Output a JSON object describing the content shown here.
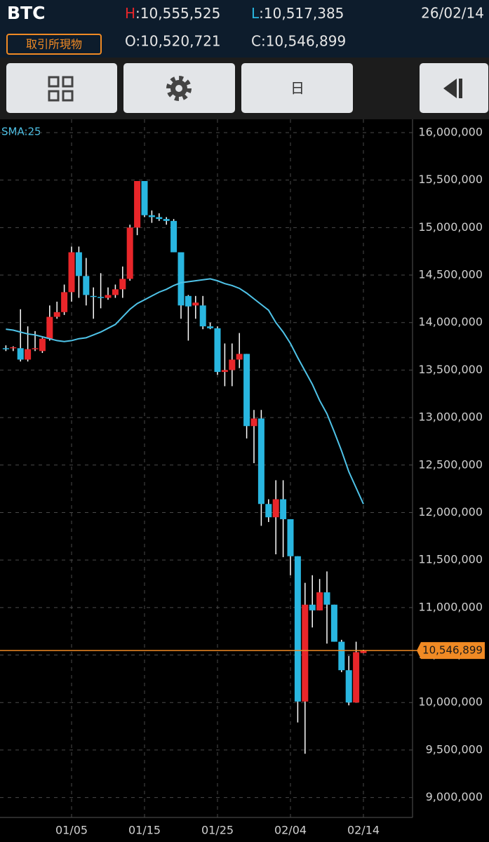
{
  "header": {
    "symbol": "BTC",
    "market": "取引所現物",
    "date": "26/02/14",
    "high": {
      "key": "H",
      "text": ":10,555,525"
    },
    "low": {
      "key": "L",
      "text": ":10,517,385"
    },
    "open": "O:10,520,721",
    "close": "C:10,546,899"
  },
  "toolbar": {
    "period": "日"
  },
  "chart_data": {
    "type": "candlestick",
    "categories": [
      null,
      null,
      null,
      null,
      null,
      null,
      null,
      null,
      null,
      "01/05",
      null,
      null,
      null,
      null,
      null,
      null,
      null,
      null,
      null,
      "01/15",
      null,
      null,
      null,
      null,
      null,
      null,
      null,
      null,
      null,
      "01/25",
      null,
      null,
      null,
      null,
      null,
      null,
      null,
      null,
      null,
      "02/04",
      null,
      null,
      null,
      null,
      null,
      null,
      null,
      null,
      null,
      "02/14"
    ],
    "open": [
      13730000,
      13730000,
      13730000,
      13610000,
      13720000,
      13700000,
      13830000,
      14060000,
      14110000,
      14320000,
      14740000,
      14490000,
      14280000,
      14270000,
      14260000,
      14290000,
      14350000,
      14460000,
      15000000,
      15490000,
      15130000,
      15110000,
      15090000,
      15070000,
      14740000,
      14280000,
      14180000,
      14180000,
      13960000,
      13940000,
      13480000,
      13500000,
      13610000,
      13670000,
      12910000,
      12990000,
      12090000,
      11950000,
      12140000,
      11930000,
      11540000,
      10010000,
      11030000,
      10970000,
      11160000,
      11030000,
      10640000,
      10340000,
      10000000,
      10520721
    ],
    "high": [
      13760000,
      13750000,
      14140000,
      13960000,
      13910000,
      13840000,
      14180000,
      14220000,
      14400000,
      14800000,
      14800000,
      14680000,
      14370000,
      14520000,
      14370000,
      14400000,
      14590000,
      15030000,
      15490000,
      15490000,
      15180000,
      15150000,
      15110000,
      15090000,
      14740000,
      14290000,
      14280000,
      14280000,
      14000000,
      13960000,
      13780000,
      13780000,
      13890000,
      13670000,
      13080000,
      13080000,
      12140000,
      12340000,
      12340000,
      11930000,
      11540000,
      11260000,
      11340000,
      11300000,
      11380000,
      11030000,
      10660000,
      10490000,
      10640000,
      10555525
    ],
    "low": [
      13700000,
      13700000,
      13590000,
      13590000,
      13700000,
      13680000,
      13810000,
      14040000,
      14080000,
      14220000,
      14260000,
      14180000,
      14040000,
      14150000,
      14240000,
      14260000,
      14260000,
      14440000,
      14920000,
      15110000,
      15050000,
      15070000,
      15030000,
      14740000,
      14040000,
      13810000,
      14040000,
      13930000,
      13930000,
      13450000,
      13330000,
      13330000,
      13520000,
      12780000,
      12520000,
      11860000,
      11900000,
      11560000,
      11530000,
      11340000,
      9790000,
      9460000,
      10790000,
      10970000,
      10620000,
      10640000,
      10320000,
      9970000,
      10000000,
      10517385
    ],
    "close": [
      13720000,
      13740000,
      13610000,
      13720000,
      13730000,
      13830000,
      14060000,
      14110000,
      14320000,
      14740000,
      14490000,
      14290000,
      14270000,
      14260000,
      14290000,
      14350000,
      14460000,
      15000000,
      15490000,
      15130000,
      15110000,
      15090000,
      15070000,
      14740000,
      14180000,
      14170000,
      14210000,
      13960000,
      13940000,
      13480000,
      13500000,
      13610000,
      13670000,
      12910000,
      12990000,
      12090000,
      11950000,
      12140000,
      11930000,
      11540000,
      10010000,
      11030000,
      10970000,
      11160000,
      11030000,
      10640000,
      10340000,
      10000000,
      10530000,
      10546899
    ],
    "up_color": "#e8262a",
    "down_color": "#29b6e0",
    "series": [
      {
        "name": "SMA:25",
        "color": "#4fc3e8",
        "values": [
          13930000,
          13920000,
          13900000,
          13880000,
          13870000,
          13850000,
          13830000,
          13810000,
          13800000,
          13810000,
          13830000,
          13840000,
          13870000,
          13900000,
          13940000,
          13980000,
          14060000,
          14140000,
          14200000,
          14240000,
          14280000,
          14320000,
          14350000,
          14390000,
          14420000,
          14430000,
          14440000,
          14450000,
          14460000,
          14440000,
          14410000,
          14390000,
          14360000,
          14310000,
          14250000,
          14190000,
          14130000,
          14000000,
          13900000,
          13780000,
          13630000,
          13490000,
          13350000,
          13180000,
          13040000,
          12850000,
          12650000,
          12430000,
          12260000,
          12090000
        ]
      }
    ],
    "last_price": {
      "value": 10546899,
      "label": "10,546,899",
      "color": "#f08a24"
    },
    "ylim": [
      8790000,
      16140000
    ],
    "yticks": [
      {
        "value": 9000000,
        "label": "9,000,000"
      },
      {
        "value": 9500000,
        "label": "9,500,000"
      },
      {
        "value": 10000000,
        "label": "10,000,000"
      },
      {
        "value": 10500000,
        "label": "10,500,000"
      },
      {
        "value": 11000000,
        "label": "11,000,000"
      },
      {
        "value": 11500000,
        "label": "11,500,000"
      },
      {
        "value": 12000000,
        "label": "12,000,000"
      },
      {
        "value": 12500000,
        "label": "12,500,000"
      },
      {
        "value": 13000000,
        "label": "13,000,000"
      },
      {
        "value": 13500000,
        "label": "13,500,000"
      },
      {
        "value": 14000000,
        "label": "14,000,000"
      },
      {
        "value": 14500000,
        "label": "14,500,000"
      },
      {
        "value": 15000000,
        "label": "15,000,000"
      },
      {
        "value": 15500000,
        "label": "15,500,000"
      },
      {
        "value": 16000000,
        "label": "16,000,000"
      }
    ],
    "grid": true
  }
}
